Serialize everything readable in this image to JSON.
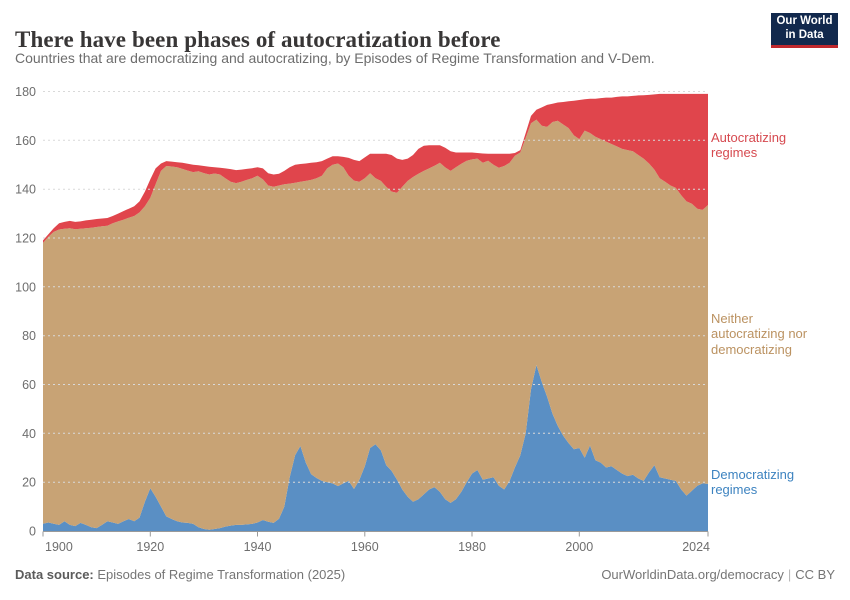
{
  "header": {
    "title": "There have been phases of autocratization before",
    "subtitle": "Countries that are democratizing and autocratizing, by Episodes of Regime Transformation and V-Dem.",
    "logo": {
      "line1": "Our World",
      "line2": "in Data",
      "bg_color": "#12294d",
      "accent_color": "#c0282d"
    }
  },
  "annotations": {
    "autocratizing": {
      "lines": [
        "Autocratizing",
        "regimes"
      ],
      "color": "#d6494f"
    },
    "neither": {
      "lines": [
        "Neither",
        "autocratizing nor",
        "democratizing"
      ],
      "color": "#bb9261"
    },
    "democratizing": {
      "lines": [
        "Democratizing",
        "regimes"
      ],
      "color": "#3d83c0"
    }
  },
  "chart_data": {
    "type": "area",
    "stacked": true,
    "title": "Countries democratizing / autocratizing (stacked counts)",
    "xlabel": "",
    "ylabel": "",
    "ylim": [
      0,
      180
    ],
    "yticks": [
      0,
      20,
      40,
      60,
      80,
      100,
      120,
      140,
      160,
      180
    ],
    "xticks": [
      1900,
      1920,
      1940,
      1960,
      1980,
      2000,
      2024
    ],
    "grid": "dashed horizontal",
    "legend_position": "right-edge annotations",
    "grid_color": "#d9d9d9",
    "axis_color": "#9a9a9a",
    "tick_label_color": "#6e6e6e",
    "years": [
      1900,
      1901,
      1902,
      1903,
      1904,
      1905,
      1906,
      1907,
      1908,
      1909,
      1910,
      1911,
      1912,
      1913,
      1914,
      1915,
      1916,
      1917,
      1918,
      1919,
      1920,
      1921,
      1922,
      1923,
      1924,
      1925,
      1926,
      1927,
      1928,
      1929,
      1930,
      1931,
      1932,
      1933,
      1934,
      1935,
      1936,
      1937,
      1938,
      1939,
      1940,
      1941,
      1942,
      1943,
      1944,
      1945,
      1946,
      1947,
      1948,
      1949,
      1950,
      1951,
      1952,
      1953,
      1954,
      1955,
      1956,
      1957,
      1958,
      1959,
      1960,
      1961,
      1962,
      1963,
      1964,
      1965,
      1966,
      1967,
      1968,
      1969,
      1970,
      1971,
      1972,
      1973,
      1974,
      1975,
      1976,
      1977,
      1978,
      1979,
      1980,
      1981,
      1982,
      1983,
      1984,
      1985,
      1986,
      1987,
      1988,
      1989,
      1990,
      1991,
      1992,
      1993,
      1994,
      1995,
      1996,
      1997,
      1998,
      1999,
      2000,
      2001,
      2002,
      2003,
      2004,
      2005,
      2006,
      2007,
      2008,
      2009,
      2010,
      2011,
      2012,
      2013,
      2014,
      2015,
      2016,
      2017,
      2018,
      2019,
      2020,
      2021,
      2022,
      2023,
      2024
    ],
    "series": [
      {
        "name": "Democratizing regimes",
        "color": "#5a8fc4",
        "values": [
          3,
          3.5,
          3,
          2.5,
          4,
          2.5,
          2,
          3.3,
          2.5,
          1.5,
          1.2,
          2.5,
          4,
          3.5,
          2.9,
          4,
          4.9,
          4,
          5.5,
          12,
          17.5,
          14,
          10,
          6,
          4.9,
          4,
          3.5,
          3.3,
          2.9,
          1.5,
          0.8,
          0.5,
          0.8,
          1.2,
          1.8,
          2.2,
          2.5,
          2.5,
          2.7,
          2.9,
          3.5,
          4.5,
          3.8,
          3.3,
          5,
          10,
          22,
          31,
          34.8,
          28,
          23.3,
          21.7,
          20.5,
          20,
          19.5,
          18.4,
          19.5,
          20.5,
          17.2,
          21,
          26.5,
          34,
          35.5,
          33,
          27,
          24.6,
          21,
          17,
          14,
          12,
          13,
          15,
          17,
          18,
          16,
          13,
          11.5,
          13,
          16,
          20,
          23.5,
          25,
          21,
          21.5,
          22,
          18.5,
          17,
          20.5,
          26,
          31,
          40,
          58,
          68,
          61,
          55,
          48,
          43,
          39,
          36,
          33.5,
          34,
          30,
          35,
          29,
          28,
          26,
          26.5,
          25,
          23.5,
          22.5,
          23,
          21.5,
          20.5,
          24,
          27,
          22,
          21.5,
          21,
          20.5,
          17,
          14.5,
          16.5,
          18.5,
          19.5,
          19.3
        ]
      },
      {
        "name": "Neither autocratizing nor democratizing",
        "color": "#c8a375",
        "values": [
          115,
          117,
          119.5,
          121,
          119.8,
          121.5,
          121.6,
          120.5,
          121.5,
          122.7,
          123.3,
          122.3,
          121,
          122.5,
          123.9,
          123.5,
          123.4,
          125,
          125,
          121,
          119,
          128,
          137.5,
          143.5,
          144.4,
          145,
          144.8,
          144.3,
          144.1,
          145.8,
          145.8,
          145.5,
          145.6,
          144.8,
          142.7,
          140.8,
          140,
          140.5,
          141.1,
          141.6,
          142,
          139.5,
          137.7,
          137.7,
          136.5,
          132,
          120.3,
          111.6,
          108.2,
          115.4,
          120.5,
          122.8,
          125,
          128.5,
          130.5,
          132.1,
          129.5,
          125,
          126.3,
          122,
          118,
          112.5,
          109,
          110.4,
          114,
          114.4,
          117.5,
          124,
          129.4,
          133,
          133.3,
          132.5,
          131.5,
          131.6,
          134.8,
          135.9,
          136,
          136,
          134.4,
          131.6,
          128.7,
          127.5,
          129.8,
          130.1,
          128,
          130.3,
          132.5,
          130.3,
          127.7,
          124,
          121,
          109,
          100.5,
          105,
          110.5,
          119.5,
          125,
          127.5,
          129,
          128.5,
          126.5,
          134,
          128,
          132.5,
          132.5,
          133.5,
          132,
          132.5,
          133,
          133.5,
          132.5,
          132.5,
          132,
          126.5,
          121,
          122.5,
          121.5,
          120.5,
          120,
          120.5,
          120.5,
          117.5,
          113.5,
          112,
          114.2
        ]
      },
      {
        "name": "Autocratizing regimes",
        "color": "#e0454c",
        "values": [
          1,
          1,
          1.5,
          2.5,
          2.8,
          3,
          3,
          3,
          3.2,
          3.3,
          3.3,
          3.2,
          3.2,
          3,
          3.2,
          3.5,
          3.7,
          4,
          4.5,
          6,
          7.5,
          6.5,
          3,
          2,
          2,
          2,
          2.5,
          2.8,
          3,
          2.5,
          2.9,
          3.2,
          2.6,
          2.8,
          4,
          5.2,
          5.3,
          5,
          4.5,
          4.1,
          3.5,
          4.5,
          5,
          5,
          4.8,
          5.5,
          6.7,
          7.4,
          7.3,
          7.1,
          7,
          6.5,
          6,
          4,
          3.5,
          3,
          4.2,
          7.3,
          8.5,
          8.5,
          8.5,
          8,
          10,
          11.1,
          13.5,
          15,
          14,
          11,
          9.1,
          9,
          10.2,
          10.3,
          9.5,
          8.4,
          7.2,
          8.1,
          8,
          6,
          4.6,
          3.4,
          2.8,
          2.3,
          3.8,
          2.9,
          4.5,
          5.7,
          5,
          3.7,
          1.1,
          1,
          2,
          3,
          4,
          7.5,
          9,
          7.5,
          7.5,
          9.2,
          11,
          14.2,
          16,
          12.8,
          14,
          15.5,
          16.8,
          18,
          19,
          20.3,
          21.5,
          22,
          22.7,
          24.4,
          26,
          28.1,
          30.8,
          34.5,
          36,
          37.5,
          38.5,
          41.5,
          44,
          45,
          47,
          47.5,
          45.5
        ]
      }
    ]
  },
  "footer": {
    "datasource_label": "Data source:",
    "datasource": " Episodes of Regime Transformation (2025)",
    "link": "OurWorldinData.org/democracy",
    "separator": "|",
    "license": "CC BY"
  }
}
